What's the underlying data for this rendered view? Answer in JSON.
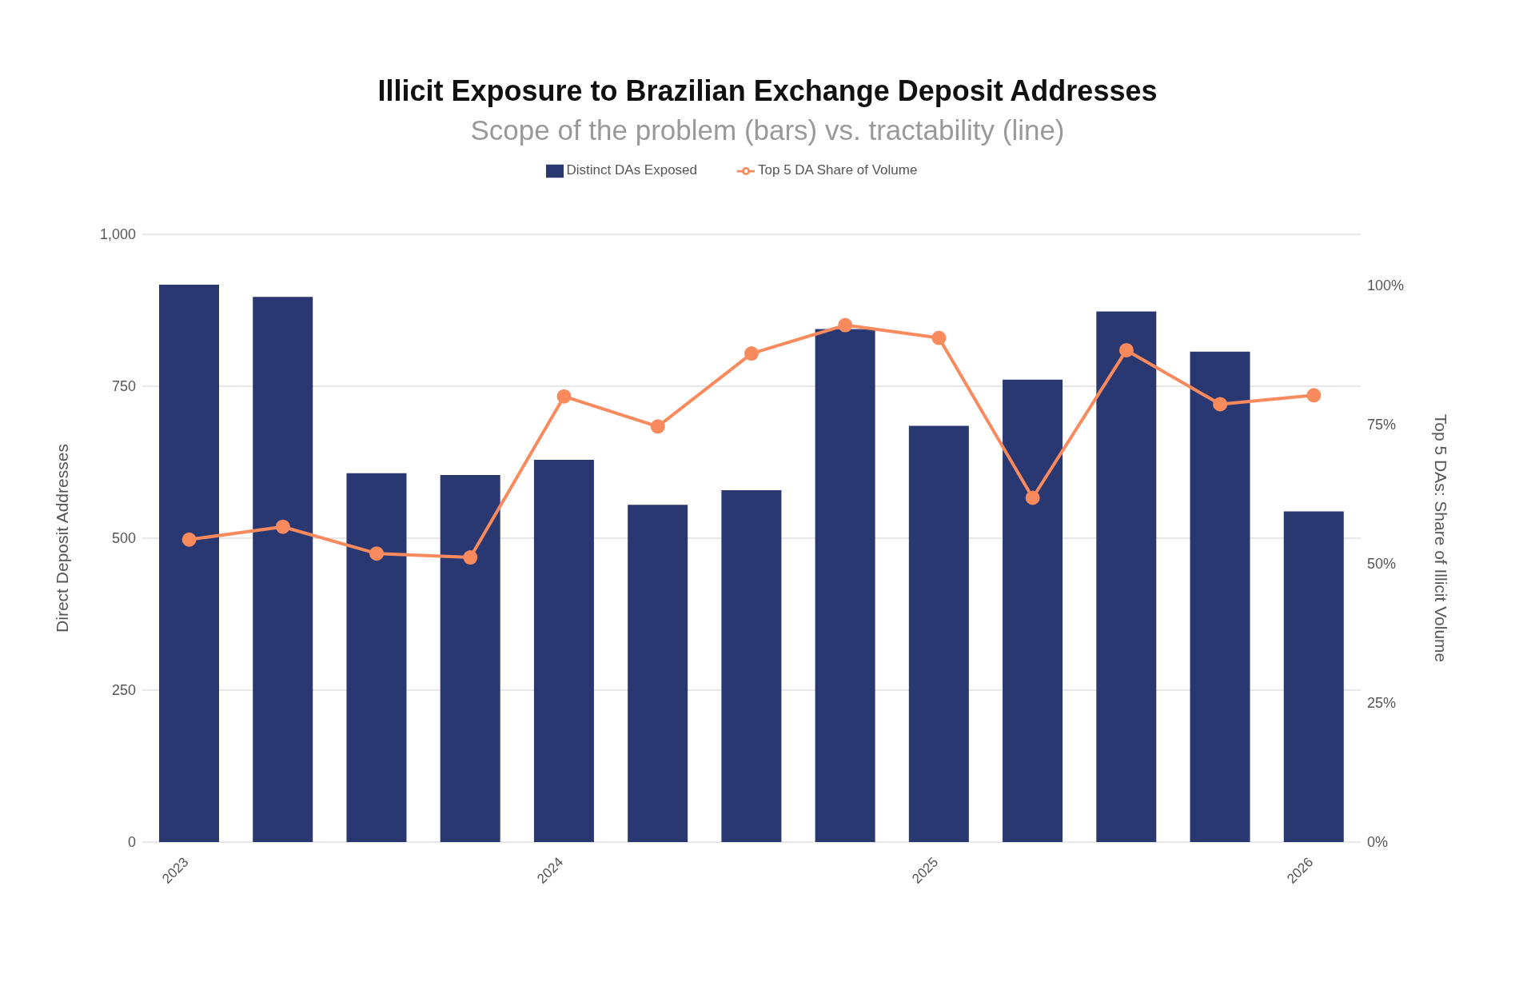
{
  "chart_data": {
    "type": "bar",
    "title": "Illicit Exposure to Brazilian Exchange Deposit Addresses",
    "subtitle": "Scope of the problem (bars) vs. tractability (line)",
    "ylabel": "Direct Deposit Addresses",
    "y2label": "Top 5 DAs: Share of Illicit Volume",
    "categories": [
      "2023",
      null,
      null,
      null,
      "2024",
      null,
      null,
      null,
      "2025",
      null,
      null,
      null,
      "2026"
    ],
    "series": [
      {
        "name": "Distinct DAs Exposed",
        "color": "#2a3872",
        "values": [
          917,
          897,
          607,
          604,
          629,
          555,
          579,
          844,
          685,
          761,
          873,
          807,
          544
        ]
      },
      {
        "name": "Top 5 DA Share of Volume",
        "type": "line",
        "axis": "y2",
        "color": "#f98a5e",
        "values": [
          54.3,
          56.6,
          51.8,
          51.1,
          80.0,
          74.6,
          87.7,
          92.8,
          90.5,
          61.8,
          88.3,
          78.6,
          80.2
        ]
      }
    ],
    "ylim": [
      0,
      1000
    ],
    "yticks": [
      0,
      250,
      500,
      750,
      {
        "value": 1000,
        "label": "1,000"
      }
    ],
    "y2lim": [
      0,
      109.1
    ],
    "y2ticks": [
      {
        "value": 0,
        "label": "0%"
      },
      {
        "value": 25,
        "label": "25%"
      },
      {
        "value": 50,
        "label": "50%"
      },
      {
        "value": 75,
        "label": "75%"
      },
      {
        "value": 100,
        "label": "100%"
      }
    ],
    "grid": "y",
    "legend": "top",
    "marker": "circle",
    "line_style": "solid"
  }
}
